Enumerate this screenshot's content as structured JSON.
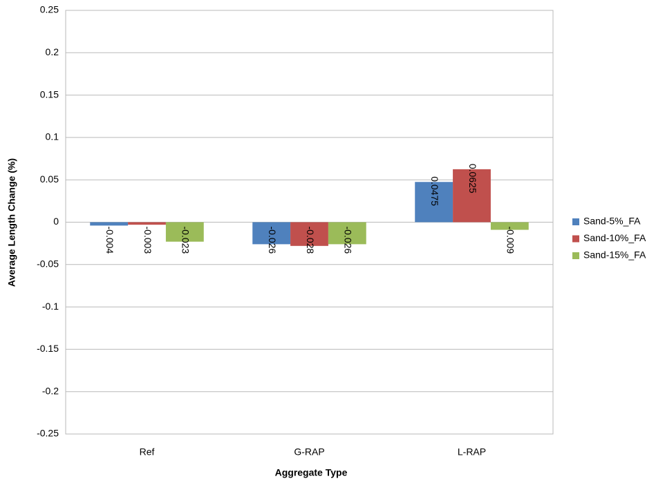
{
  "chart_data": {
    "type": "bar",
    "x_label": "Aggregate Type",
    "y_label": "Average Length Change (%)",
    "categories": [
      "Ref",
      "G-RAP",
      "L-RAP"
    ],
    "series": [
      {
        "name": "Sand-5%_FA",
        "color": "#4f81bd",
        "values": [
          -0.004,
          -0.026,
          0.0475
        ]
      },
      {
        "name": "Sand-10%_FA",
        "color": "#c0504d",
        "values": [
          -0.003,
          -0.028,
          0.0625
        ]
      },
      {
        "name": "Sand-15%_FA",
        "color": "#9bbb59",
        "values": [
          -0.023,
          -0.026,
          -0.009
        ]
      }
    ],
    "ylim": [
      -0.25,
      0.25
    ],
    "yticks": [
      -0.25,
      -0.2,
      -0.15,
      -0.1,
      -0.05,
      0,
      0.05,
      0.1,
      0.15,
      0.2,
      0.25
    ],
    "grid": true,
    "legend": "right"
  }
}
